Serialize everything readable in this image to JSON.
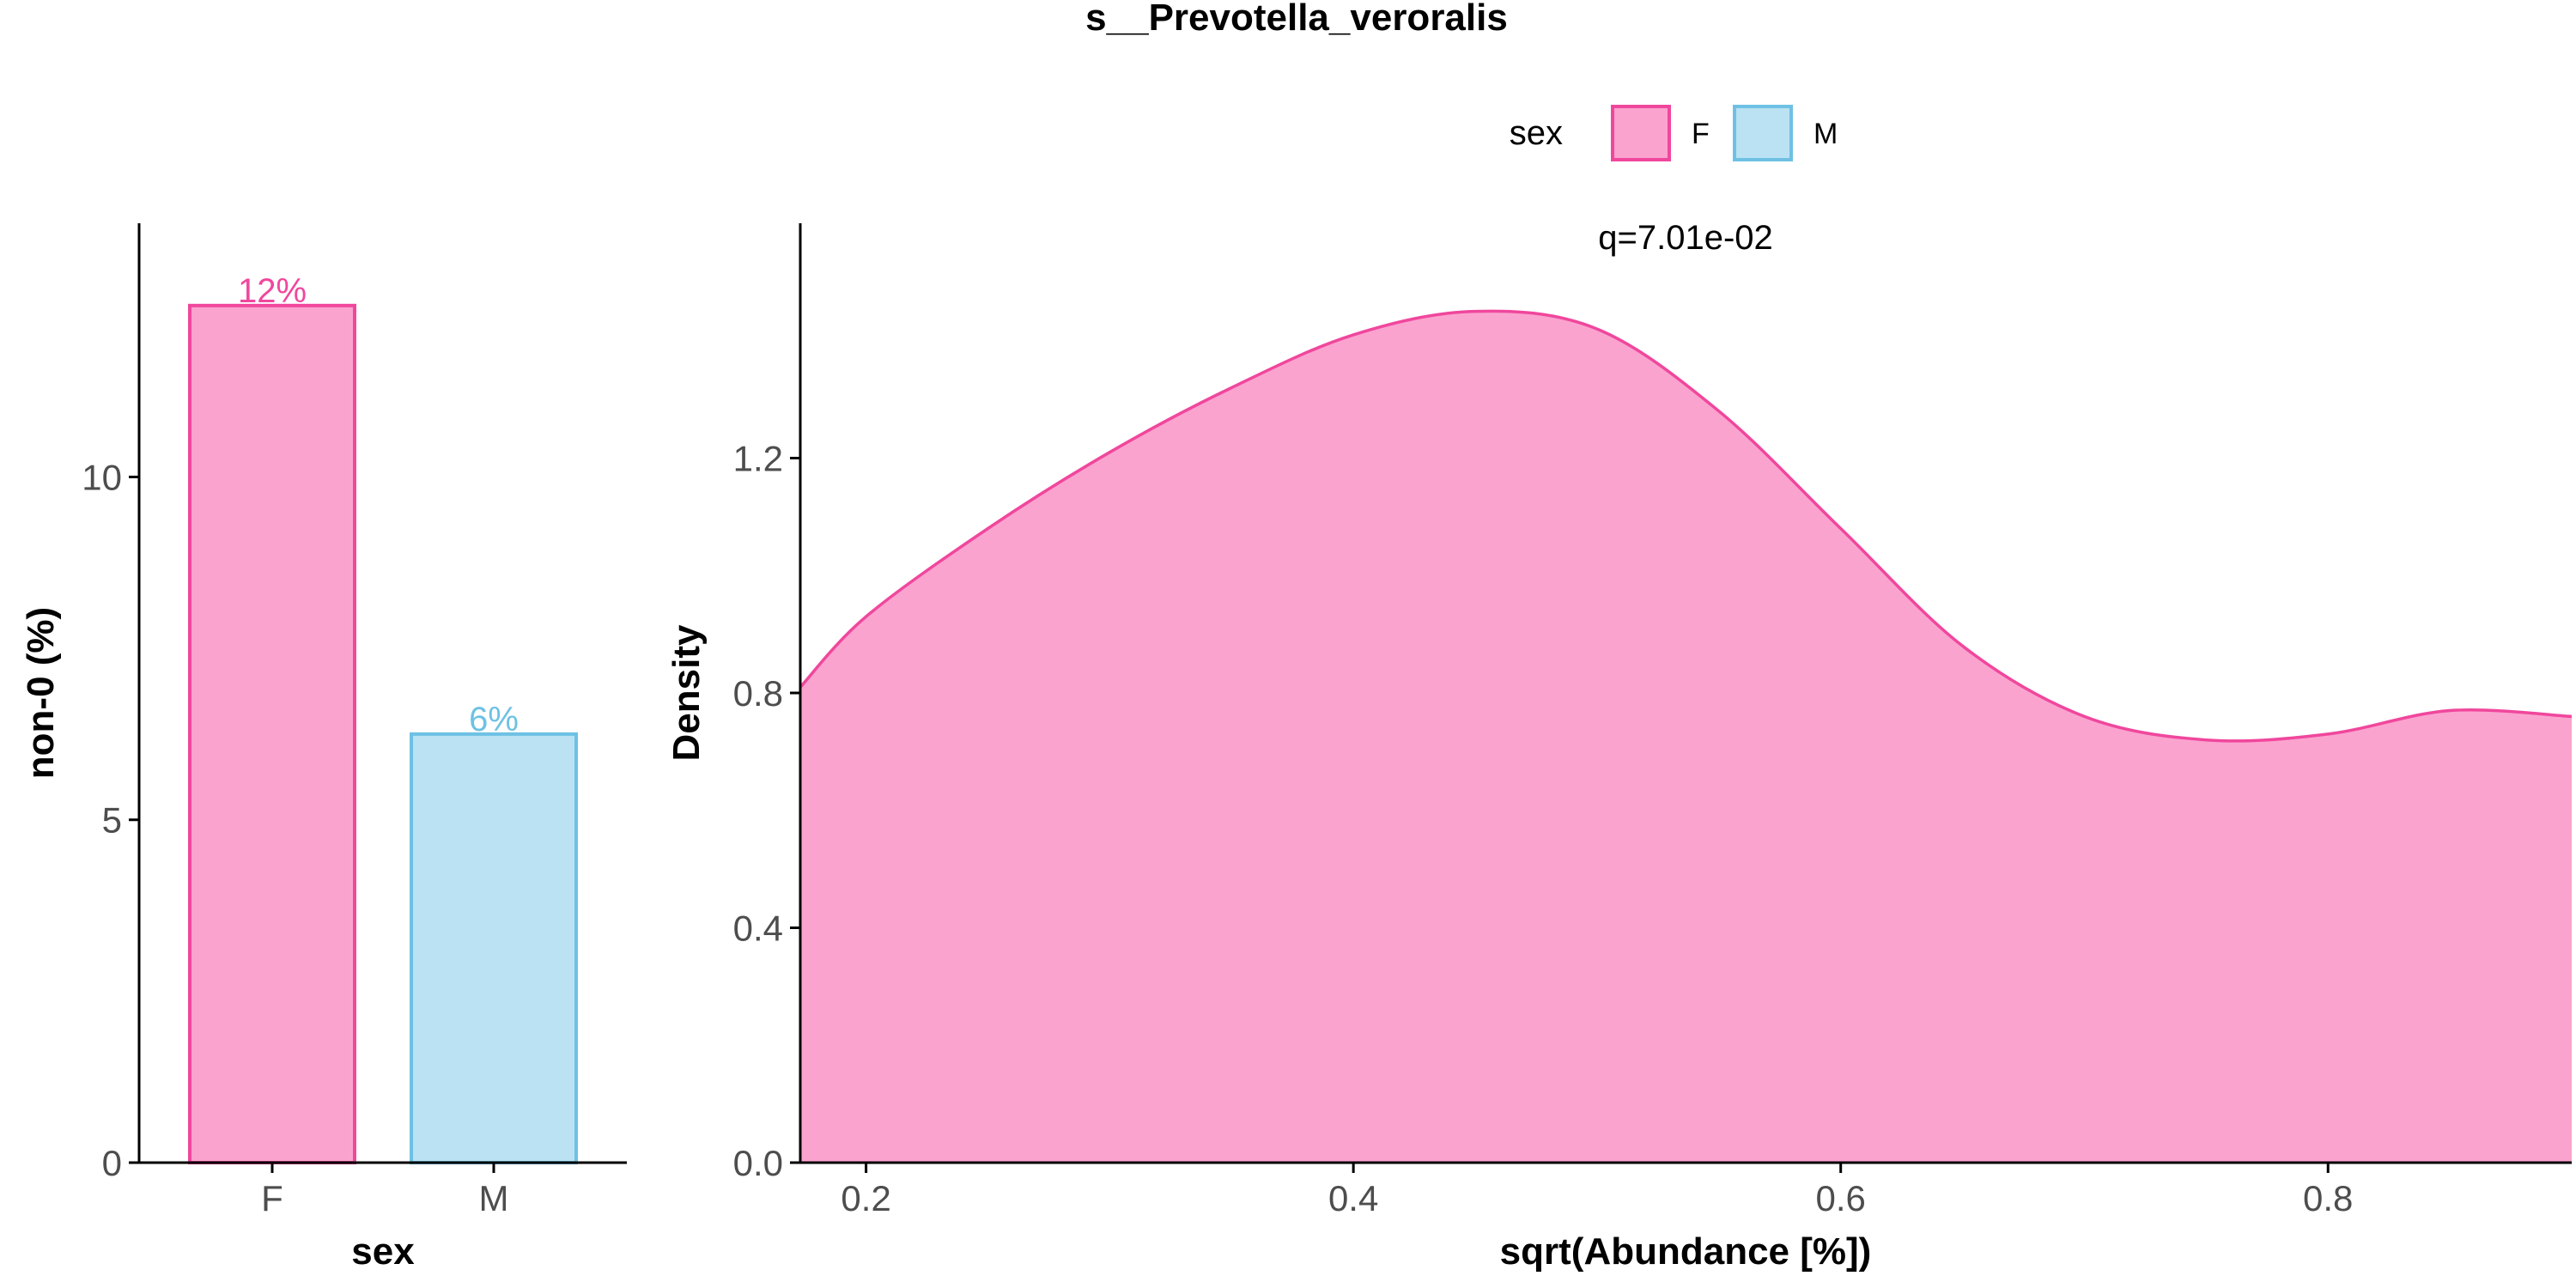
{
  "title": "s__Prevotella_veroralis",
  "legend": {
    "title": "sex",
    "entries": [
      {
        "label": "F",
        "fill": "#fba3cf",
        "stroke": "#f0479d"
      },
      {
        "label": "M",
        "fill": "#bae2f2",
        "stroke": "#6ec1e4"
      }
    ]
  },
  "colors": {
    "F_fill": "#fba3cf",
    "F_stroke": "#f0479d",
    "M_fill": "#bae2f2",
    "M_stroke": "#6ec1e4",
    "axis": "#000000",
    "tick_text": "#4d4d4d"
  },
  "chart_data": [
    {
      "type": "bar",
      "categories": [
        "F",
        "M"
      ],
      "values": [
        12.5,
        6.25
      ],
      "data_labels": [
        "12%",
        "6%"
      ],
      "xlabel": "sex",
      "ylabel": "non-0 (%)",
      "ylim": [
        0,
        13.7
      ],
      "yticks": [
        0,
        5,
        10
      ],
      "ytick_labels": [
        "0",
        "5",
        "10"
      ],
      "grid": false
    },
    {
      "type": "area",
      "series": [
        {
          "name": "F",
          "x": [
            0.173,
            0.2,
            0.25,
            0.3,
            0.35,
            0.4,
            0.45,
            0.5,
            0.55,
            0.6,
            0.65,
            0.7,
            0.75,
            0.8,
            0.85,
            0.9
          ],
          "y": [
            0.81,
            0.93,
            1.08,
            1.21,
            1.32,
            1.41,
            1.45,
            1.42,
            1.28,
            1.08,
            0.88,
            0.76,
            0.72,
            0.73,
            0.77,
            0.76
          ]
        }
      ],
      "annotation": "q=7.01e-02",
      "xlabel": "sqrt(Abundance [%])",
      "ylabel": "Density",
      "xlim": [
        0.173,
        0.9
      ],
      "ylim": [
        0,
        1.6
      ],
      "xticks": [
        0.2,
        0.4,
        0.6,
        0.8
      ],
      "xtick_labels": [
        "0.2",
        "0.4",
        "0.6",
        "0.8"
      ],
      "yticks": [
        0,
        0.4,
        0.8,
        1.2
      ],
      "ytick_labels": [
        "0.0",
        "0.4",
        "0.8",
        "1.2"
      ],
      "grid": false,
      "legend_position": "top"
    }
  ]
}
